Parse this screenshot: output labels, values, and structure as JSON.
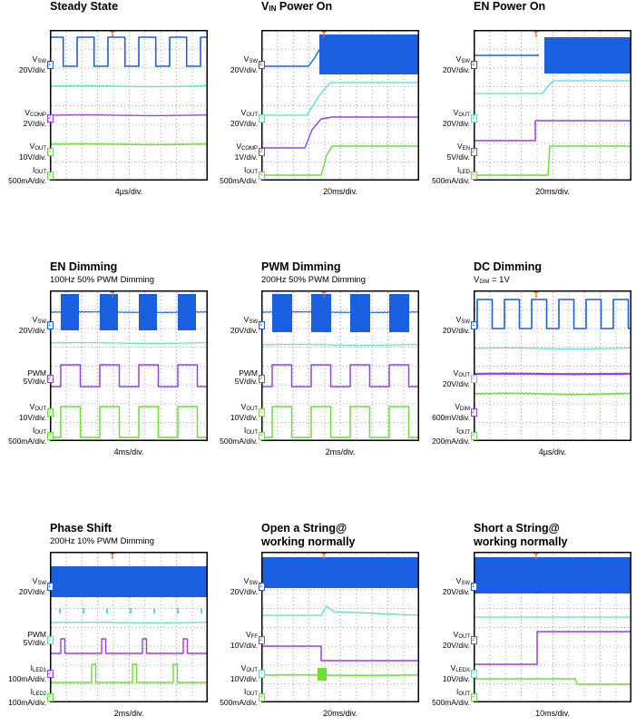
{
  "colors": {
    "blue": "#1a5fe0",
    "teal": "#55e0c8",
    "purple": "#9a3fe0",
    "green": "#6fdc3a",
    "trigger": "#e07030"
  },
  "chart_data": [
    {
      "type": "line",
      "title": "Steady State",
      "subtitle": "",
      "xlabel": "4µs/div.",
      "channels": [
        {
          "name": "VSW",
          "sub": "SW",
          "base": "V",
          "scale": "20V/div.",
          "marker": "1",
          "color": "blue"
        },
        {
          "name": "VCOMP",
          "sub": "COMP",
          "base": "V",
          "scale": "2V/div.",
          "marker": "2",
          "color": "purple"
        },
        {
          "name": "VOUT",
          "sub": "OUT",
          "base": "V",
          "scale": "10V/div.",
          "marker": "3",
          "color": "green"
        },
        {
          "name": "IOUT",
          "sub": "OUT",
          "base": "I",
          "scale": "500mA/div.",
          "marker": "4",
          "color": "green"
        }
      ]
    },
    {
      "type": "line",
      "title": "VIN Power On",
      "title_base": "V",
      "title_sub": "IN",
      "title_rest": " Power On",
      "subtitle": "",
      "xlabel": "20ms/div.",
      "channels": [
        {
          "name": "VSW",
          "sub": "SW",
          "base": "V",
          "scale": "20V/div.",
          "marker": "1",
          "color": "blue"
        },
        {
          "name": "VOUT",
          "sub": "OUT",
          "base": "V",
          "scale": "20V/div.",
          "marker": "3",
          "color": "teal"
        },
        {
          "name": "VCOMP",
          "sub": "COMP",
          "base": "V",
          "scale": "1V/div.",
          "marker": "2",
          "color": "purple"
        },
        {
          "name": "IOUT",
          "sub": "OUT",
          "base": "I",
          "scale": "500mA/div.",
          "marker": "4",
          "color": "green"
        }
      ]
    },
    {
      "type": "line",
      "title": "EN Power On",
      "subtitle": "",
      "xlabel": "20ms/div.",
      "channels": [
        {
          "name": "VSW",
          "sub": "SW",
          "base": "V",
          "scale": "20V/div.",
          "marker": "1",
          "color": "blue"
        },
        {
          "name": "VOUT",
          "sub": "OUT",
          "base": "V",
          "scale": "20V/div.",
          "marker": "3",
          "color": "teal"
        },
        {
          "name": "VEN",
          "sub": "EN",
          "base": "V",
          "scale": "5V/div.",
          "marker": "2",
          "color": "purple"
        },
        {
          "name": "ILED",
          "sub": "LED",
          "base": "I",
          "scale": "500mA/div.",
          "marker": "4",
          "color": "green"
        }
      ]
    },
    {
      "type": "line",
      "title": "EN Dimming",
      "subtitle": "100Hz 50% PWM Dimming",
      "xlabel": "4ms/div.",
      "channels": [
        {
          "name": "VSW",
          "sub": "SW",
          "base": "V",
          "scale": "20V/div.",
          "marker": "1",
          "color": "blue"
        },
        {
          "name": "PWM",
          "sub": "",
          "base": "PWM",
          "scale": "5V/div.",
          "marker": "2",
          "color": "purple"
        },
        {
          "name": "VOUT",
          "sub": "OUT",
          "base": "V",
          "scale": "10V/div.",
          "marker": "3",
          "color": "green"
        },
        {
          "name": "IOUT",
          "sub": "OUT",
          "base": "I",
          "scale": "500mA/div.",
          "marker": "4",
          "color": "green"
        }
      ]
    },
    {
      "type": "line",
      "title": "PWM Dimming",
      "subtitle": "200Hz 50% PWM Dimming",
      "xlabel": "2ms/div.",
      "channels": [
        {
          "name": "VSW",
          "sub": "SW",
          "base": "V",
          "scale": "20V/div.",
          "marker": "1",
          "color": "blue"
        },
        {
          "name": "PWM",
          "sub": "",
          "base": "PWM",
          "scale": "5V/div.",
          "marker": "2",
          "color": "purple"
        },
        {
          "name": "VOUT",
          "sub": "OUT",
          "base": "V",
          "scale": "10V/div.",
          "marker": "3",
          "color": "green"
        },
        {
          "name": "IOUT",
          "sub": "OUT",
          "base": "I",
          "scale": "500mA/div.",
          "marker": "4",
          "color": "green"
        }
      ]
    },
    {
      "type": "line",
      "title": "DC Dimming",
      "subtitle": "VDIM = 1V",
      "sub_base": "V",
      "sub_sub": "DIM",
      "sub_rest": " = 1V",
      "xlabel": "4µs/div.",
      "channels": [
        {
          "name": "VSW",
          "sub": "SW",
          "base": "V",
          "scale": "20V/div.",
          "marker": "1",
          "color": "blue"
        },
        {
          "name": "VOUT",
          "sub": "OUT",
          "base": "V",
          "scale": "20V/div.",
          "marker": "3",
          "color": "teal"
        },
        {
          "name": "VDIM",
          "sub": "DIM",
          "base": "V",
          "scale": "600mV/div.",
          "marker": "2",
          "color": "purple"
        },
        {
          "name": "IOUT",
          "sub": "OUT",
          "base": "I",
          "scale": "200mA/div.",
          "marker": "4",
          "color": "green"
        }
      ]
    },
    {
      "type": "line",
      "title": "Phase Shift",
      "subtitle": "200Hz 10% PWM Dimming",
      "xlabel": "2ms/div.",
      "channels": [
        {
          "name": "VSW",
          "sub": "SW",
          "base": "V",
          "scale": "20V/div.",
          "marker": "1",
          "color": "blue"
        },
        {
          "name": "PWM",
          "sub": "",
          "base": "PWM",
          "scale": "5V/div.",
          "marker": "3",
          "color": "teal"
        },
        {
          "name": "ILED1",
          "sub": "LED1",
          "base": "I",
          "scale": "100mA/div.",
          "marker": "2",
          "color": "purple"
        },
        {
          "name": "ILED2",
          "sub": "LED2",
          "base": "I",
          "scale": "100mA/div.",
          "marker": "4",
          "color": "green"
        }
      ]
    },
    {
      "type": "line",
      "title": "Open a String@ working normally",
      "title_lines": [
        "Open a String@",
        "working normally"
      ],
      "subtitle": "",
      "xlabel": "20ms/div.",
      "channels": [
        {
          "name": "VSW",
          "sub": "SW",
          "base": "V",
          "scale": "20V/div.",
          "marker": "1",
          "color": "blue"
        },
        {
          "name": "VFF",
          "sub": "FF",
          "base": "V",
          "scale": "10V/div.",
          "marker": "2",
          "color": "purple"
        },
        {
          "name": "VOUT",
          "sub": "OUT",
          "base": "V",
          "scale": "10V/div.",
          "marker": "3",
          "color": "teal"
        },
        {
          "name": "IOUT",
          "sub": "OUT",
          "base": "I",
          "scale": "500mA/div.",
          "marker": "4",
          "color": "green"
        }
      ]
    },
    {
      "type": "line",
      "title": "Short a String@ working normally",
      "title_lines": [
        "Short a String@",
        "working normally"
      ],
      "subtitle": "",
      "xlabel": "10ms/div.",
      "channels": [
        {
          "name": "VSW",
          "sub": "SW",
          "base": "V",
          "scale": "20V/div.",
          "marker": "1",
          "color": "blue"
        },
        {
          "name": "VOUT",
          "sub": "OUT",
          "base": "V",
          "scale": "20V/div.",
          "marker": "2",
          "color": "purple"
        },
        {
          "name": "VLEDX",
          "sub": "LEDX",
          "base": "V",
          "scale": "10V/div.",
          "marker": "3",
          "color": "teal"
        },
        {
          "name": "IOUT",
          "sub": "OUT",
          "base": "I",
          "scale": "500mA/div.",
          "marker": "4",
          "color": "green"
        }
      ]
    }
  ]
}
